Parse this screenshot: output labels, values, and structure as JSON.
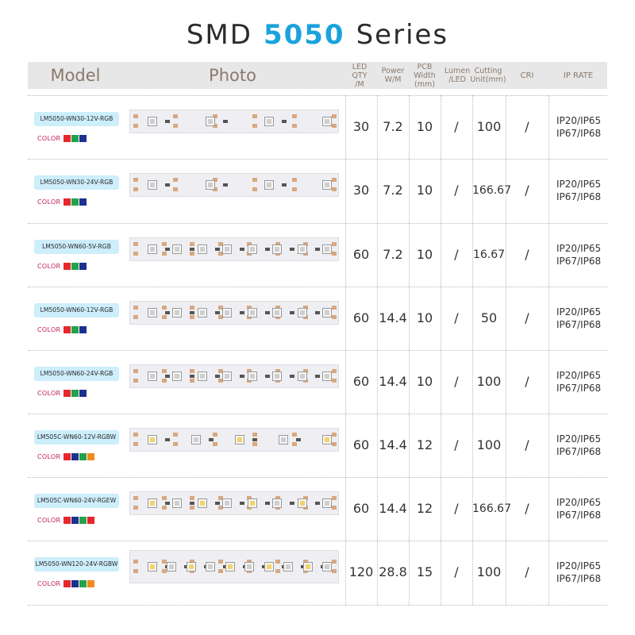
{
  "title": {
    "prefix": "SMD",
    "accent": "5050",
    "suffix": "Series"
  },
  "header": {
    "model": "Model",
    "photo": "Photo",
    "qty": "LED  QTY\n/M",
    "power": "Power\nW/M",
    "pcb": "PCB Width\n(mm)",
    "lumen": "Lumen\n/LED",
    "cutting": "Cutting\nUnit(mm)",
    "cri": "CRI",
    "ip": "IP RATE"
  },
  "color_label": "COLOR",
  "colors": {
    "red": "#e8262b",
    "green": "#23a24a",
    "blue": "#1d2f8f",
    "orange": "#f08a1c",
    "accent": "#1aa3dc"
  },
  "rows": [
    {
      "model": "LM5050-WN30-12V-RGB",
      "swatches": [
        "red",
        "green",
        "blue"
      ],
      "qty": "30",
      "power": "7.2",
      "pcb": "10",
      "lumen": "/",
      "cutting": "100",
      "cri": "/",
      "ip1": "IP20/IP65",
      "ip2": "IP67/IP68"
    },
    {
      "model": "LM5050-WN30-24V-RGB",
      "swatches": [
        "red",
        "green",
        "blue"
      ],
      "qty": "30",
      "power": "7.2",
      "pcb": "10",
      "lumen": "/",
      "cutting": "166.67",
      "cri": "/",
      "ip1": "IP20/IP65",
      "ip2": "IP67/IP68"
    },
    {
      "model": "LM5050-WN60-5V-RGB",
      "swatches": [
        "red",
        "green",
        "blue"
      ],
      "qty": "60",
      "power": "7.2",
      "pcb": "10",
      "lumen": "/",
      "cutting": "16.67",
      "cri": "/",
      "ip1": "IP20/IP65",
      "ip2": "IP67/IP68"
    },
    {
      "model": "LM5050-WN60-12V-RGB",
      "swatches": [
        "red",
        "green",
        "blue"
      ],
      "qty": "60",
      "power": "14.4",
      "pcb": "10",
      "lumen": "/",
      "cutting": "50",
      "cri": "/",
      "ip1": "IP20/IP65",
      "ip2": "IP67/IP68"
    },
    {
      "model": "LM5050-WN60-24V-RGB",
      "swatches": [
        "red",
        "green",
        "blue"
      ],
      "qty": "60",
      "power": "14.4",
      "pcb": "10",
      "lumen": "/",
      "cutting": "100",
      "cri": "/",
      "ip1": "IP20/IP65",
      "ip2": "IP67/IP68"
    },
    {
      "model": "LM505C-WN60-12V-RGBW",
      "swatches": [
        "red",
        "blue",
        "green",
        "orange"
      ],
      "qty": "60",
      "power": "14.4",
      "pcb": "12",
      "lumen": "/",
      "cutting": "100",
      "cri": "/",
      "ip1": "IP20/IP65",
      "ip2": "IP67/IP68"
    },
    {
      "model": "LM505C-WN60-24V-RGEW",
      "swatches": [
        "red",
        "blue",
        "green",
        "red"
      ],
      "qty": "60",
      "power": "14.4",
      "pcb": "12",
      "lumen": "/",
      "cutting": "166.67",
      "cri": "/",
      "ip1": "IP20/IP65",
      "ip2": "IP67/IP68"
    },
    {
      "model": "LM5050-WN120-24V-RGBW",
      "swatches": [
        "red",
        "blue",
        "green",
        "orange"
      ],
      "qty": "120",
      "power": "28.8",
      "pcb": "15",
      "lumen": "/",
      "cutting": "100",
      "cri": "/",
      "ip1": "IP20/IP65",
      "ip2": "IP67/IP68"
    }
  ]
}
